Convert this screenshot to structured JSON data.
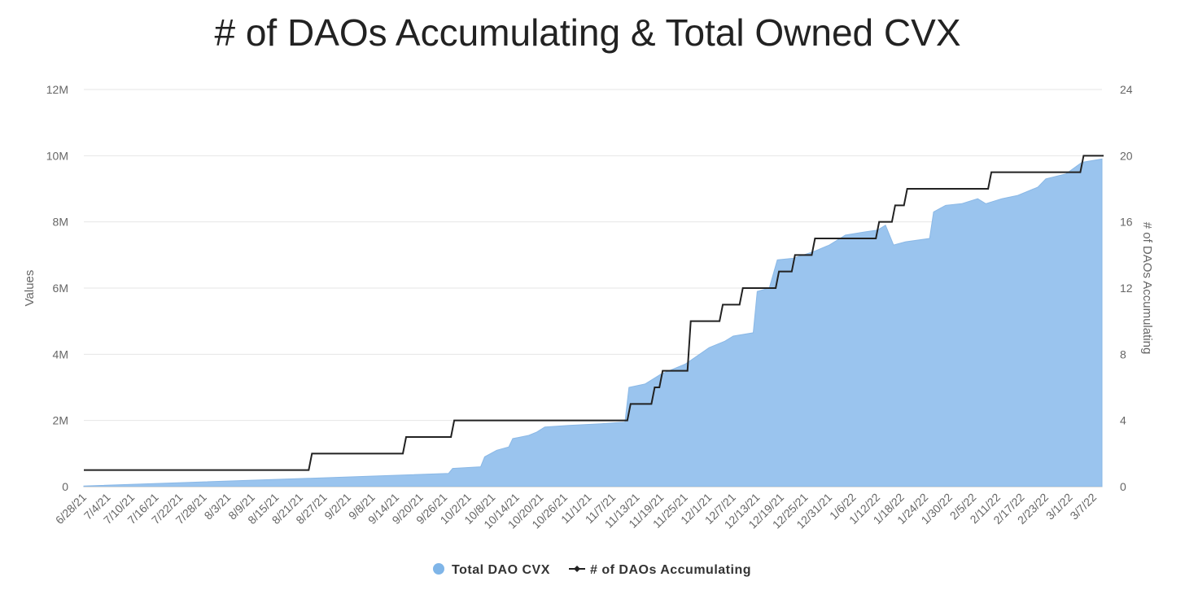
{
  "chart_data": {
    "type": "area+line",
    "title": "# of DAOs Accumulating & Total Owned CVX",
    "xlabel": "",
    "ylabel": "Values",
    "y2label": "# of DAOs Accumulating",
    "ylim": [
      0,
      12000000
    ],
    "y2lim": [
      0,
      24
    ],
    "yticks": [
      "0",
      "2M",
      "4M",
      "6M",
      "8M",
      "10M",
      "12M"
    ],
    "y2ticks": [
      "0",
      "4",
      "8",
      "12",
      "16",
      "20",
      "24"
    ],
    "x_unit": "days since 6/28/21",
    "xlim": [
      0,
      254
    ],
    "x_tick_step_days": 6,
    "x_ticks": [
      "6/28/21",
      "7/4/21",
      "7/10/21",
      "7/16/21",
      "7/22/21",
      "7/28/21",
      "8/3/21",
      "8/9/21",
      "8/15/21",
      "8/21/21",
      "8/27/21",
      "9/2/21",
      "9/8/21",
      "9/14/21",
      "9/20/21",
      "9/26/21",
      "10/2/21",
      "10/8/21",
      "10/14/21",
      "10/20/21",
      "10/26/21",
      "11/1/21",
      "11/7/21",
      "11/13/21",
      "11/19/21",
      "11/25/21",
      "12/1/21",
      "12/7/21",
      "12/13/21",
      "12/19/21",
      "12/25/21",
      "12/31/21",
      "1/6/22",
      "1/12/22",
      "1/18/22",
      "1/24/22",
      "1/30/22",
      "2/5/22",
      "2/11/22",
      "2/17/22",
      "2/23/22",
      "3/1/22",
      "3/7/22"
    ],
    "grid": true,
    "legend_position": "bottom-center",
    "series": [
      {
        "name": "Total DAO CVX",
        "type": "area",
        "color": "#9ac4ee",
        "points": [
          [
            0,
            0.02
          ],
          [
            56,
            0.25
          ],
          [
            91,
            0.4
          ],
          [
            92,
            0.55
          ],
          [
            99,
            0.6
          ],
          [
            100,
            0.9
          ],
          [
            103,
            1.1
          ],
          [
            106,
            1.2
          ],
          [
            107,
            1.45
          ],
          [
            111,
            1.55
          ],
          [
            113,
            1.65
          ],
          [
            115,
            1.8
          ],
          [
            121,
            1.85
          ],
          [
            129,
            1.9
          ],
          [
            135,
            1.95
          ],
          [
            136,
            3.0
          ],
          [
            140,
            3.1
          ],
          [
            144,
            3.4
          ],
          [
            150,
            3.7
          ],
          [
            153,
            3.95
          ],
          [
            156,
            4.2
          ],
          [
            160,
            4.4
          ],
          [
            162,
            4.55
          ],
          [
            167,
            4.65
          ],
          [
            168,
            5.9
          ],
          [
            171,
            6.0
          ],
          [
            173,
            6.85
          ],
          [
            177,
            6.9
          ],
          [
            182,
            7.1
          ],
          [
            186,
            7.3
          ],
          [
            190,
            7.6
          ],
          [
            195,
            7.7
          ],
          [
            198,
            7.75
          ],
          [
            200,
            7.9
          ],
          [
            202,
            7.3
          ],
          [
            205,
            7.4
          ],
          [
            211,
            7.5
          ],
          [
            212,
            8.3
          ],
          [
            215,
            8.5
          ],
          [
            219,
            8.55
          ],
          [
            223,
            8.7
          ],
          [
            225,
            8.55
          ],
          [
            229,
            8.7
          ],
          [
            233,
            8.8
          ],
          [
            238,
            9.05
          ],
          [
            240,
            9.3
          ],
          [
            245,
            9.45
          ],
          [
            249,
            9.8
          ],
          [
            254,
            9.9
          ]
        ],
        "value_unit": "millions"
      },
      {
        "name": "# of DAOs Accumulating",
        "type": "step-line",
        "color": "#222222",
        "points": [
          [
            0,
            1
          ],
          [
            56.5,
            2
          ],
          [
            80,
            3
          ],
          [
            92,
            4
          ],
          [
            136,
            5
          ],
          [
            142,
            6
          ],
          [
            144,
            7
          ],
          [
            151,
            10
          ],
          [
            159,
            11
          ],
          [
            164,
            12
          ],
          [
            173,
            13
          ],
          [
            177,
            14
          ],
          [
            182,
            15
          ],
          [
            198,
            16
          ],
          [
            202,
            17
          ],
          [
            205,
            18
          ],
          [
            226,
            19
          ],
          [
            249,
            20
          ],
          [
            254,
            20
          ]
        ]
      }
    ]
  }
}
